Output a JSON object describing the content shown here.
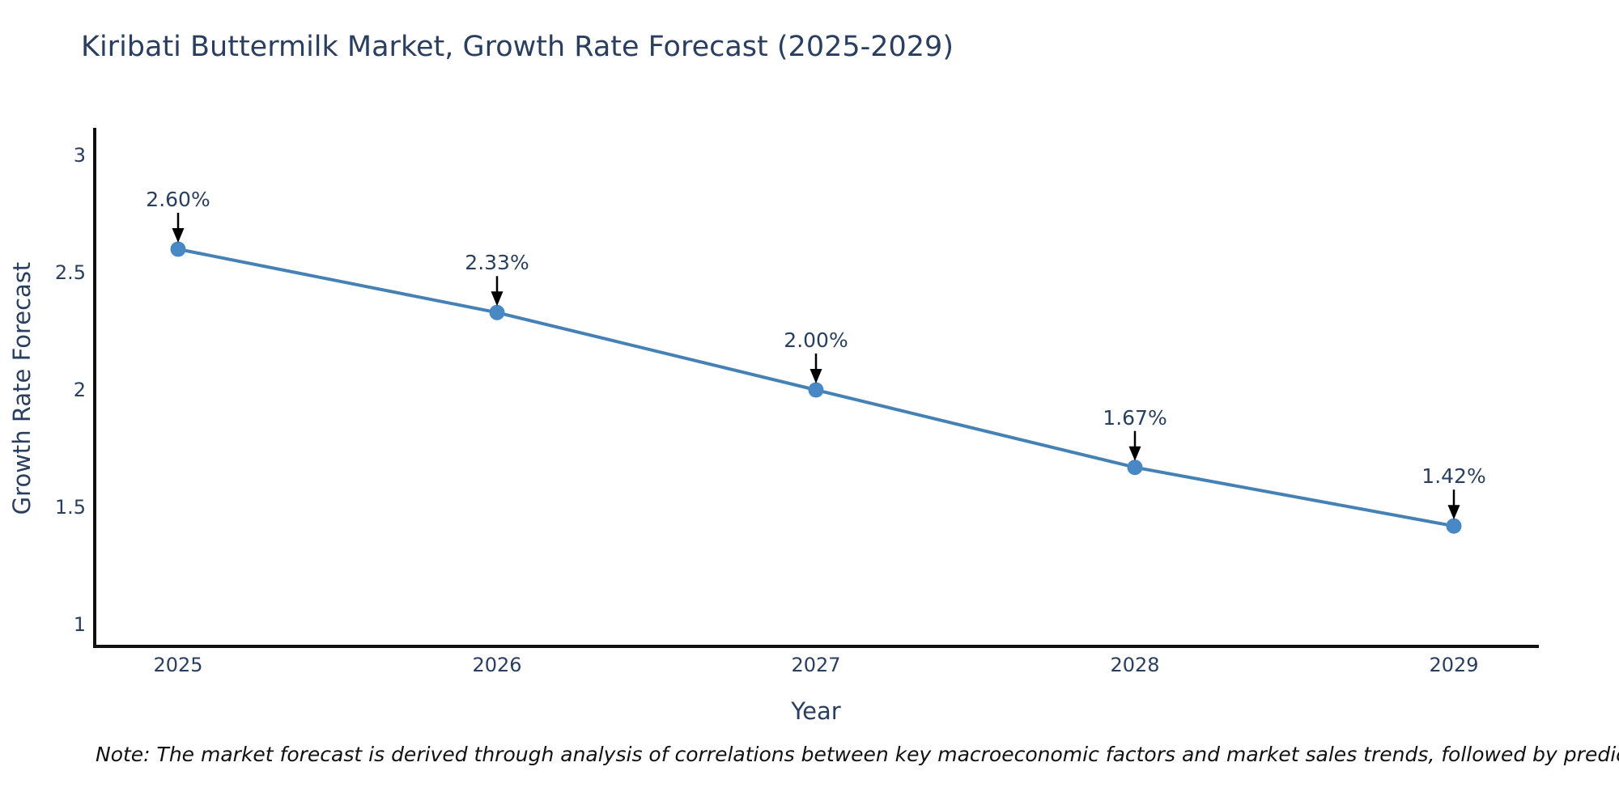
{
  "chart_data": {
    "type": "line",
    "title": "Kiribati Buttermilk Market, Growth Rate Forecast (2025-2029)",
    "xlabel": "Year",
    "ylabel": "Growth Rate Forecast",
    "x": [
      2025,
      2026,
      2027,
      2028,
      2029
    ],
    "series": [
      {
        "name": "Growth Rate Forecast",
        "values": [
          2.6,
          2.33,
          2.0,
          1.67,
          1.42
        ]
      }
    ],
    "point_labels": [
      "2.60%",
      "2.33%",
      "2.00%",
      "1.67%",
      "1.42%"
    ],
    "x_tick_labels": [
      "2025",
      "2026",
      "2027",
      "2028",
      "2029"
    ],
    "y_tick_values": [
      3,
      2.5,
      2,
      1.5,
      1
    ],
    "y_tick_labels": [
      "3",
      "2.5",
      "2",
      "1.5",
      "1"
    ],
    "ylim": [
      0.9,
      3.11
    ],
    "grid": false,
    "legend": "none",
    "annotation_style": "label-above-with-down-arrow",
    "colors": {
      "line": "#4581b5",
      "marker": "#4888c4",
      "axis_line": "#101010",
      "chart_text": "#2a3f5f",
      "annotation_arrow": "#000000",
      "note_text": "#111111",
      "background": "#ffffff"
    }
  },
  "note": {
    "text": "Note: The market forecast is derived through analysis of correlations between key macroeconomic factors and market sales trends, followed by predictive modeling to project future sales"
  }
}
